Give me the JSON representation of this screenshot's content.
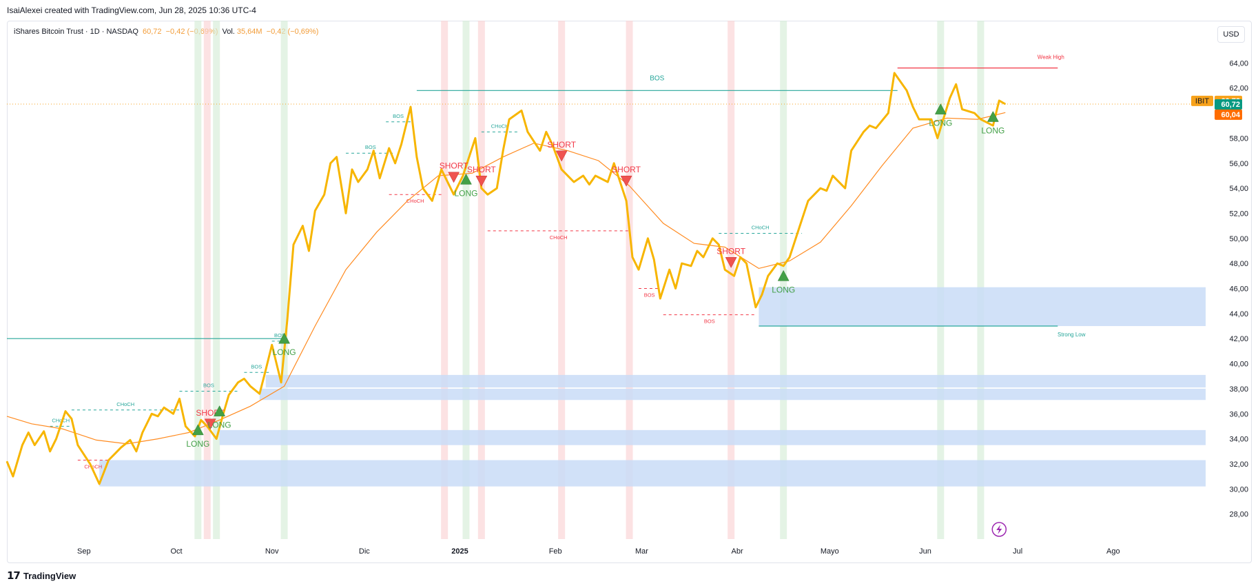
{
  "header": {
    "attribution": "IsaiAlexei created with TradingView.com, Jun 28, 2025 10:36 UTC-4"
  },
  "legend": {
    "title": "iShares Bitcoin Trust · 1D · NASDAQ",
    "price": "60,72",
    "change": "−0,42 (−0,69%)",
    "vol_label": "Vol.",
    "vol_value": "35,64M",
    "vol_change": "−0,42 (−0,69%)"
  },
  "currency_button": "USD",
  "footer": {
    "brand": "TradingView"
  },
  "colors": {
    "price_line": "#f7b500",
    "ma_line": "#ff8a1f",
    "bull": "#26a69a",
    "bear": "#f23645",
    "zone": "#c9dcf7",
    "long_marker": "#43a047",
    "short_marker": "#ef5350"
  },
  "chart_data": {
    "type": "line",
    "ylim": [
      26,
      66
    ],
    "y_ticks": [
      "28,00",
      "30,00",
      "32,00",
      "34,00",
      "36,00",
      "38,00",
      "40,00",
      "42,00",
      "44,00",
      "46,00",
      "48,00",
      "50,00",
      "52,00",
      "54,00",
      "56,00",
      "58,00",
      "62,00",
      "64,00"
    ],
    "x_tick_labels": [
      {
        "label": "Sep",
        "date": "2024-09-01"
      },
      {
        "label": "Oct",
        "date": "2024-10-01"
      },
      {
        "label": "Nov",
        "date": "2024-11-01"
      },
      {
        "label": "Dic",
        "date": "2024-12-01"
      },
      {
        "label": "2025",
        "date": "2025-01-01"
      },
      {
        "label": "Feb",
        "date": "2025-02-01"
      },
      {
        "label": "Mar",
        "date": "2025-03-01"
      },
      {
        "label": "Abr",
        "date": "2025-04-01"
      },
      {
        "label": "Mayo",
        "date": "2025-05-01"
      },
      {
        "label": "Jun",
        "date": "2025-06-01"
      },
      {
        "label": "Jul",
        "date": "2025-07-01"
      },
      {
        "label": "Ago",
        "date": "2025-08-01"
      }
    ],
    "x_range": [
      "2024-08-07",
      "2025-08-31"
    ],
    "series": [
      {
        "key": "close",
        "points": [
          [
            "2024-08-07",
            32.2
          ],
          [
            "2024-08-09",
            31.0
          ],
          [
            "2024-08-12",
            33.5
          ],
          [
            "2024-08-14",
            34.5
          ],
          [
            "2024-08-16",
            33.5
          ],
          [
            "2024-08-19",
            34.6
          ],
          [
            "2024-08-21",
            33.0
          ],
          [
            "2024-08-23",
            34.0
          ],
          [
            "2024-08-26",
            36.2
          ],
          [
            "2024-08-28",
            35.6
          ],
          [
            "2024-08-30",
            33.5
          ],
          [
            "2024-09-03",
            32.0
          ],
          [
            "2024-09-06",
            30.4
          ],
          [
            "2024-09-09",
            32.3
          ],
          [
            "2024-09-11",
            32.8
          ],
          [
            "2024-09-13",
            33.3
          ],
          [
            "2024-09-16",
            33.9
          ],
          [
            "2024-09-18",
            33.0
          ],
          [
            "2024-09-20",
            34.5
          ],
          [
            "2024-09-23",
            36.0
          ],
          [
            "2024-09-25",
            35.8
          ],
          [
            "2024-09-27",
            36.5
          ],
          [
            "2024-09-30",
            36.0
          ],
          [
            "2024-10-02",
            37.2
          ],
          [
            "2024-10-04",
            35.0
          ],
          [
            "2024-10-07",
            34.2
          ],
          [
            "2024-10-09",
            35.5
          ],
          [
            "2024-10-11",
            35.0
          ],
          [
            "2024-10-14",
            34.0
          ],
          [
            "2024-10-16",
            35.8
          ],
          [
            "2024-10-18",
            37.5
          ],
          [
            "2024-10-21",
            38.5
          ],
          [
            "2024-10-23",
            38.8
          ],
          [
            "2024-10-25",
            38.2
          ],
          [
            "2024-10-28",
            37.6
          ],
          [
            "2024-10-30",
            39.5
          ],
          [
            "2024-11-01",
            41.5
          ],
          [
            "2024-11-04",
            38.5
          ],
          [
            "2024-11-06",
            43.5
          ],
          [
            "2024-11-08",
            49.5
          ],
          [
            "2024-11-11",
            51.0
          ],
          [
            "2024-11-13",
            49.0
          ],
          [
            "2024-11-15",
            52.2
          ],
          [
            "2024-11-18",
            53.5
          ],
          [
            "2024-11-20",
            56.0
          ],
          [
            "2024-11-22",
            56.5
          ],
          [
            "2024-11-25",
            52.0
          ],
          [
            "2024-11-27",
            55.5
          ],
          [
            "2024-11-29",
            54.5
          ],
          [
            "2024-12-02",
            55.5
          ],
          [
            "2024-12-04",
            57.0
          ],
          [
            "2024-12-06",
            54.8
          ],
          [
            "2024-12-09",
            57.2
          ],
          [
            "2024-12-11",
            56.0
          ],
          [
            "2024-12-13",
            57.5
          ],
          [
            "2024-12-16",
            60.5
          ],
          [
            "2024-12-18",
            56.5
          ],
          [
            "2024-12-20",
            54.0
          ],
          [
            "2024-12-23",
            53.0
          ],
          [
            "2024-12-26",
            55.5
          ],
          [
            "2024-12-30",
            53.5
          ],
          [
            "2025-01-02",
            55.0
          ],
          [
            "2025-01-06",
            58.0
          ],
          [
            "2025-01-08",
            54.0
          ],
          [
            "2025-01-10",
            53.5
          ],
          [
            "2025-01-13",
            54.0
          ],
          [
            "2025-01-15",
            57.0
          ],
          [
            "2025-01-17",
            59.5
          ],
          [
            "2025-01-21",
            60.2
          ],
          [
            "2025-01-23",
            58.5
          ],
          [
            "2025-01-27",
            57.0
          ],
          [
            "2025-01-29",
            58.5
          ],
          [
            "2025-01-31",
            57.5
          ],
          [
            "2025-02-03",
            55.5
          ],
          [
            "2025-02-05",
            55.0
          ],
          [
            "2025-02-07",
            54.5
          ],
          [
            "2025-02-10",
            55.0
          ],
          [
            "2025-02-12",
            54.3
          ],
          [
            "2025-02-14",
            55.0
          ],
          [
            "2025-02-18",
            54.5
          ],
          [
            "2025-02-20",
            56.0
          ],
          [
            "2025-02-24",
            53.0
          ],
          [
            "2025-02-26",
            48.5
          ],
          [
            "2025-02-28",
            47.5
          ],
          [
            "2025-03-03",
            50.0
          ],
          [
            "2025-03-05",
            48.3
          ],
          [
            "2025-03-07",
            45.2
          ],
          [
            "2025-03-10",
            47.5
          ],
          [
            "2025-03-12",
            46.0
          ],
          [
            "2025-03-14",
            48.0
          ],
          [
            "2025-03-17",
            47.8
          ],
          [
            "2025-03-19",
            49.0
          ],
          [
            "2025-03-21",
            48.5
          ],
          [
            "2025-03-24",
            50.0
          ],
          [
            "2025-03-26",
            49.5
          ],
          [
            "2025-03-28",
            47.5
          ],
          [
            "2025-03-31",
            47.0
          ],
          [
            "2025-04-02",
            48.5
          ],
          [
            "2025-04-04",
            48.0
          ],
          [
            "2025-04-07",
            44.5
          ],
          [
            "2025-04-09",
            45.5
          ],
          [
            "2025-04-11",
            47.0
          ],
          [
            "2025-04-14",
            48.0
          ],
          [
            "2025-04-16",
            47.8
          ],
          [
            "2025-04-18",
            48.5
          ],
          [
            "2025-04-22",
            51.5
          ],
          [
            "2025-04-24",
            53.0
          ],
          [
            "2025-04-28",
            54.0
          ],
          [
            "2025-04-30",
            53.8
          ],
          [
            "2025-05-02",
            55.0
          ],
          [
            "2025-05-06",
            54.0
          ],
          [
            "2025-05-08",
            57.0
          ],
          [
            "2025-05-12",
            58.5
          ],
          [
            "2025-05-14",
            59.0
          ],
          [
            "2025-05-16",
            58.8
          ],
          [
            "2025-05-20",
            60.0
          ],
          [
            "2025-05-22",
            63.2
          ],
          [
            "2025-05-26",
            61.8
          ],
          [
            "2025-05-28",
            60.5
          ],
          [
            "2025-05-30",
            59.5
          ],
          [
            "2025-06-03",
            59.5
          ],
          [
            "2025-06-05",
            58.0
          ],
          [
            "2025-06-09",
            61.2
          ],
          [
            "2025-06-11",
            62.3
          ],
          [
            "2025-06-13",
            60.3
          ],
          [
            "2025-06-17",
            60.0
          ],
          [
            "2025-06-19",
            59.5
          ],
          [
            "2025-06-23",
            59.0
          ],
          [
            "2025-06-25",
            61.0
          ],
          [
            "2025-06-27",
            60.72
          ]
        ]
      },
      {
        "key": "ma",
        "points": [
          [
            "2024-08-07",
            35.8
          ],
          [
            "2024-08-15",
            35.2
          ],
          [
            "2024-08-25",
            34.8
          ],
          [
            "2024-09-05",
            33.9
          ],
          [
            "2024-09-15",
            33.6
          ],
          [
            "2024-09-25",
            34.0
          ],
          [
            "2024-10-05",
            34.5
          ],
          [
            "2024-10-15",
            35.5
          ],
          [
            "2024-10-25",
            36.6
          ],
          [
            "2024-11-05",
            38.2
          ],
          [
            "2024-11-15",
            43.0
          ],
          [
            "2024-11-25",
            47.5
          ],
          [
            "2024-12-05",
            50.5
          ],
          [
            "2024-12-15",
            53.0
          ],
          [
            "2024-12-25",
            55.0
          ],
          [
            "2025-01-05",
            55.2
          ],
          [
            "2025-01-15",
            56.5
          ],
          [
            "2025-01-25",
            57.6
          ],
          [
            "2025-02-05",
            57.0
          ],
          [
            "2025-02-15",
            56.2
          ],
          [
            "2025-02-25",
            54.2
          ],
          [
            "2025-03-08",
            51.2
          ],
          [
            "2025-03-18",
            49.6
          ],
          [
            "2025-03-28",
            49.3
          ],
          [
            "2025-04-08",
            47.6
          ],
          [
            "2025-04-18",
            48.2
          ],
          [
            "2025-04-28",
            49.7
          ],
          [
            "2025-05-08",
            52.6
          ],
          [
            "2025-05-18",
            55.8
          ],
          [
            "2025-05-28",
            58.8
          ],
          [
            "2025-06-08",
            59.6
          ],
          [
            "2025-06-18",
            59.5
          ],
          [
            "2025-06-27",
            60.04
          ]
        ]
      }
    ],
    "zones": [
      {
        "x1": "2024-09-06",
        "x2": "2025-08-31",
        "y1": 30.2,
        "y2": 32.3
      },
      {
        "x1": "2024-10-15",
        "x2": "2025-08-31",
        "y1": 33.5,
        "y2": 34.7
      },
      {
        "x1": "2024-10-28",
        "x2": "2025-08-31",
        "y1": 37.1,
        "y2": 38.0
      },
      {
        "x1": "2024-10-30",
        "x2": "2025-08-31",
        "y1": 38.1,
        "y2": 39.1
      },
      {
        "x1": "2025-04-08",
        "x2": "2025-08-31",
        "y1": 43.0,
        "y2": 46.1
      }
    ],
    "vertical_bands": [
      {
        "date": "2024-10-08",
        "kind": "bull"
      },
      {
        "date": "2024-10-11",
        "kind": "bear"
      },
      {
        "date": "2024-10-14",
        "kind": "bull"
      },
      {
        "date": "2024-11-05",
        "kind": "bull"
      },
      {
        "date": "2024-12-27",
        "kind": "bear"
      },
      {
        "date": "2025-01-03",
        "kind": "bull"
      },
      {
        "date": "2025-01-08",
        "kind": "bear"
      },
      {
        "date": "2025-02-03",
        "kind": "bear"
      },
      {
        "date": "2025-02-25",
        "kind": "bear"
      },
      {
        "date": "2025-03-30",
        "kind": "bear"
      },
      {
        "date": "2025-04-16",
        "kind": "bull"
      },
      {
        "date": "2025-06-06",
        "kind": "bull"
      },
      {
        "date": "2025-06-19",
        "kind": "bull"
      }
    ],
    "structure_lines": [
      {
        "label": "BOS",
        "kind": "bull",
        "y": 61.8,
        "x1": "2024-12-18",
        "x2": "2025-05-23",
        "label_pos": "center"
      },
      {
        "label": "Weak High",
        "kind": "bear",
        "y": 63.6,
        "x1": "2025-05-23",
        "x2": "2025-07-14",
        "label_pos": "right"
      },
      {
        "label": "Strong Low",
        "kind": "bull",
        "y": 43.0,
        "x1": "2025-04-08",
        "x2": "2025-07-14",
        "label_pos": "right-below"
      },
      {
        "label": "",
        "kind": "bull",
        "y": 42.0,
        "x1": "2024-08-07",
        "x2": "2024-11-06",
        "label_pos": "none"
      }
    ],
    "dashed_lines": [
      {
        "label": "CHoCH",
        "kind": "bull",
        "y": 35.0,
        "x1": "2024-08-21",
        "x2": "2024-08-28",
        "below": false
      },
      {
        "label": "CHoCH",
        "kind": "bear",
        "y": 32.3,
        "x1": "2024-08-30",
        "x2": "2024-09-09",
        "below": true
      },
      {
        "label": "CHoCH",
        "kind": "bull",
        "y": 36.3,
        "x1": "2024-08-28",
        "x2": "2024-10-02",
        "below": false
      },
      {
        "label": "BOS",
        "kind": "bull",
        "y": 37.8,
        "x1": "2024-10-02",
        "x2": "2024-10-21",
        "below": false
      },
      {
        "label": "BOS",
        "kind": "bull",
        "y": 39.3,
        "x1": "2024-10-23",
        "x2": "2024-10-31",
        "below": false
      },
      {
        "label": "BOS",
        "kind": "bull",
        "y": 41.8,
        "x1": "2024-11-01",
        "x2": "2024-11-06",
        "below": false
      },
      {
        "label": "BOS",
        "kind": "bull",
        "y": 56.8,
        "x1": "2024-11-25",
        "x2": "2024-12-11",
        "below": false
      },
      {
        "label": "BOS",
        "kind": "bull",
        "y": 59.3,
        "x1": "2024-12-08",
        "x2": "2024-12-16",
        "below": false
      },
      {
        "label": "CHoCH",
        "kind": "bear",
        "y": 53.5,
        "x1": "2024-12-09",
        "x2": "2024-12-26",
        "below": true
      },
      {
        "label": "CHoCH",
        "kind": "bull",
        "y": 58.5,
        "x1": "2025-01-08",
        "x2": "2025-01-20",
        "below": false
      },
      {
        "label": "CHoCH",
        "kind": "bear",
        "y": 50.6,
        "x1": "2025-01-10",
        "x2": "2025-02-25",
        "below": true
      },
      {
        "label": "BOS",
        "kind": "bear",
        "y": 46.0,
        "x1": "2025-02-28",
        "x2": "2025-03-07",
        "below": true
      },
      {
        "label": "BOS",
        "kind": "bear",
        "y": 43.9,
        "x1": "2025-03-08",
        "x2": "2025-04-07",
        "below": true
      },
      {
        "label": "CHoCH",
        "kind": "bull",
        "y": 50.4,
        "x1": "2025-03-26",
        "x2": "2025-04-22",
        "below": false
      }
    ],
    "signals": [
      {
        "type": "LONG",
        "date": "2024-10-08",
        "y": 34.7
      },
      {
        "type": "SHORT",
        "date": "2024-10-12",
        "y": 35.2
      },
      {
        "type": "LONG",
        "date": "2024-10-15",
        "y": 36.2
      },
      {
        "type": "LONG",
        "date": "2024-11-05",
        "y": 42.0
      },
      {
        "type": "SHORT",
        "date": "2024-12-30",
        "y": 54.9
      },
      {
        "type": "LONG",
        "date": "2025-01-03",
        "y": 54.7
      },
      {
        "type": "SHORT",
        "date": "2025-01-08",
        "y": 54.6
      },
      {
        "type": "SHORT",
        "date": "2025-02-03",
        "y": 56.6
      },
      {
        "type": "SHORT",
        "date": "2025-02-24",
        "y": 54.6
      },
      {
        "type": "SHORT",
        "date": "2025-03-30",
        "y": 48.1
      },
      {
        "type": "LONG",
        "date": "2025-04-16",
        "y": 47.0
      },
      {
        "type": "LONG",
        "date": "2025-06-06",
        "y": 60.3
      },
      {
        "type": "LONG",
        "date": "2025-06-23",
        "y": 59.7
      }
    ],
    "last_price_line": 60.72,
    "price_tags": [
      {
        "label": "IBIT",
        "value": "60,72",
        "y": 61.0,
        "bg": "#f7a21b",
        "ticker": true
      },
      {
        "label": "",
        "value": "60,72",
        "y": 60.72,
        "bg": "#089981",
        "ticker": false
      },
      {
        "label": "",
        "value": "60,04",
        "y": 59.9,
        "bg": "#ff6d00",
        "ticker": false
      }
    ]
  }
}
